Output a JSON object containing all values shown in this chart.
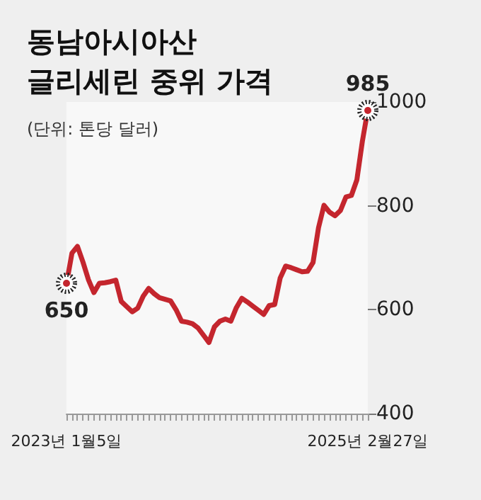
{
  "chart_data": {
    "type": "line",
    "title": "동남아시아산\n글리세린 중위 가격",
    "subtitle": "(단위: 톤당 달러)",
    "categories": [
      "2023년 1월5일",
      null,
      null,
      null,
      null,
      null,
      null,
      null,
      null,
      null,
      null,
      null,
      null,
      null,
      null,
      null,
      null,
      null,
      null,
      null,
      null,
      null,
      null,
      null,
      null,
      null,
      null,
      null,
      null,
      null,
      null,
      null,
      null,
      null,
      null,
      null,
      null,
      null,
      null,
      null,
      null,
      null,
      null,
      null,
      null,
      null,
      null,
      null,
      null,
      null,
      null,
      null,
      null,
      null,
      null,
      "2025년 2월27일"
    ],
    "series": [
      {
        "color": "#c4262e",
        "values": [
          650,
          709,
          722,
          692,
          658,
          633,
          651,
          652,
          654,
          657,
          616,
          606,
          596,
          603,
          626,
          641,
          631,
          623,
          620,
          617,
          600,
          578,
          576,
          573,
          565,
          551,
          537,
          567,
          578,
          582,
          578,
          604,
          622,
          615,
          607,
          599,
          591,
          608,
          610,
          661,
          684,
          681,
          677,
          673,
          674,
          691,
          758,
          801,
          788,
          781,
          791,
          817,
          820,
          850,
          924,
          985
        ]
      }
    ],
    "annotations": [
      {
        "text": "650",
        "x": "2023년 1월5일",
        "y": 650
      },
      {
        "text": "985",
        "x": "2025년 2월27일",
        "y": 985
      }
    ],
    "ylim": [
      400,
      1000
    ],
    "yticks": [
      400,
      600,
      800,
      1000
    ],
    "marker": "none",
    "line_style": "solid"
  }
}
